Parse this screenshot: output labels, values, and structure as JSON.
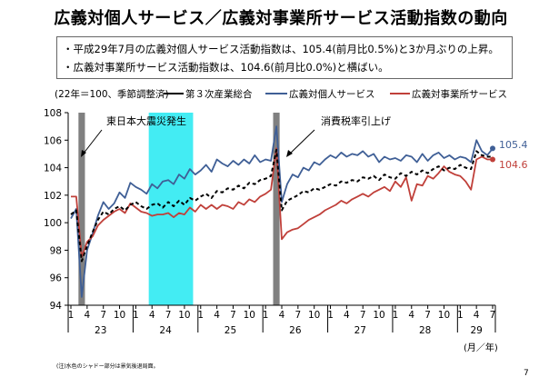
{
  "title": "広義対個人サービス／広義対事業所サービス活動指数の動向",
  "bullets": [
    "・平成29年7月の広義対個人サービス活動指数は、105.4(前月比0.5%)と3か月ぶりの上昇。",
    "・広義対事業所サービス活動指数は、104.6(前月比0.0%)と横ばい。"
  ],
  "footnote": "(注)水色のシャドー部分は景気後退局面。",
  "page_number": "7",
  "colors": {
    "total": "#000000",
    "personal": "#3f5f96",
    "business": "#c0403a",
    "shade_cyan": "#43ecf3",
    "shade_gray": "#808080"
  },
  "chart_data": {
    "type": "line",
    "unit_note": "(22年＝100、季節調整済)",
    "ylim": [
      94,
      108
    ],
    "yticks": [
      94,
      96,
      98,
      100,
      102,
      104,
      106,
      108
    ],
    "x_tick_labels": [
      "1",
      "4",
      "7",
      "10",
      "1",
      "4",
      "7",
      "10",
      "1",
      "4",
      "7",
      "10",
      "1",
      "4",
      "7",
      "10",
      "1",
      "4",
      "7",
      "10",
      "1",
      "4",
      "7",
      "10",
      "1",
      "4",
      "7"
    ],
    "year_labels": [
      "23",
      "24",
      "25",
      "26",
      "27",
      "28",
      "29"
    ],
    "x_axis_unit": "(月／年)",
    "x": [
      "2011-01",
      "2011-02",
      "2011-03",
      "2011-04",
      "2011-05",
      "2011-06",
      "2011-07",
      "2011-08",
      "2011-09",
      "2011-10",
      "2011-11",
      "2011-12",
      "2012-01",
      "2012-02",
      "2012-03",
      "2012-04",
      "2012-05",
      "2012-06",
      "2012-07",
      "2012-08",
      "2012-09",
      "2012-10",
      "2012-11",
      "2012-12",
      "2013-01",
      "2013-02",
      "2013-03",
      "2013-04",
      "2013-05",
      "2013-06",
      "2013-07",
      "2013-08",
      "2013-09",
      "2013-10",
      "2013-11",
      "2013-12",
      "2014-01",
      "2014-02",
      "2014-03",
      "2014-04",
      "2014-05",
      "2014-06",
      "2014-07",
      "2014-08",
      "2014-09",
      "2014-10",
      "2014-11",
      "2014-12",
      "2015-01",
      "2015-02",
      "2015-03",
      "2015-04",
      "2015-05",
      "2015-06",
      "2015-07",
      "2015-08",
      "2015-09",
      "2015-10",
      "2015-11",
      "2015-12",
      "2016-01",
      "2016-02",
      "2016-03",
      "2016-04",
      "2016-05",
      "2016-06",
      "2016-07",
      "2016-08",
      "2016-09",
      "2016-10",
      "2016-11",
      "2016-12",
      "2017-01",
      "2017-02",
      "2017-03",
      "2017-04",
      "2017-05",
      "2017-06",
      "2017-07"
    ],
    "series": [
      {
        "name": "第３次産業総合",
        "values": [
          100.6,
          100.9,
          97.2,
          98.3,
          99.3,
          100.2,
          100.8,
          100.6,
          101.0,
          101.2,
          100.9,
          101.3,
          101.5,
          101.2,
          101.0,
          101.3,
          101.4,
          101.1,
          101.5,
          101.2,
          101.6,
          101.3,
          101.8,
          101.6,
          101.9,
          102.1,
          101.8,
          102.3,
          102.2,
          102.5,
          102.4,
          102.7,
          102.5,
          102.9,
          102.8,
          103.1,
          103.2,
          103.4,
          105.3,
          100.9,
          101.6,
          101.8,
          102.0,
          102.3,
          102.2,
          102.5,
          102.4,
          102.6,
          102.8,
          102.7,
          103.0,
          102.9,
          103.1,
          103.0,
          103.3,
          103.2,
          103.4,
          103.1,
          103.5,
          103.3,
          103.2,
          103.6,
          103.4,
          103.7,
          103.5,
          103.8,
          103.6,
          103.9,
          104.1,
          103.8,
          104.0,
          103.9,
          104.2,
          104.0,
          103.9,
          105.2,
          104.9,
          104.8,
          104.8
        ]
      },
      {
        "name": "広義対個人サービス",
        "values": [
          100.3,
          101.0,
          94.6,
          98.0,
          99.2,
          100.5,
          101.5,
          101.0,
          101.4,
          102.2,
          101.8,
          102.9,
          102.6,
          102.4,
          102.1,
          102.8,
          102.5,
          103.0,
          103.1,
          102.8,
          103.5,
          103.2,
          103.9,
          103.5,
          103.8,
          104.2,
          103.7,
          104.6,
          104.3,
          104.1,
          104.5,
          104.2,
          104.6,
          104.3,
          104.9,
          104.4,
          104.6,
          104.5,
          107.0,
          101.5,
          102.8,
          103.5,
          103.3,
          104.0,
          103.8,
          104.4,
          104.2,
          104.6,
          104.9,
          104.7,
          105.1,
          104.8,
          105.0,
          104.9,
          105.2,
          104.8,
          105.0,
          104.4,
          104.8,
          104.6,
          104.7,
          104.5,
          104.9,
          104.8,
          104.4,
          105.0,
          104.5,
          104.9,
          105.1,
          104.7,
          104.9,
          104.6,
          104.8,
          104.7,
          104.4,
          106.0,
          105.2,
          104.9,
          105.4
        ]
      },
      {
        "name": "広義対事業所サービス",
        "values": [
          101.9,
          101.9,
          97.5,
          98.6,
          99.0,
          99.8,
          100.2,
          100.5,
          100.8,
          101.0,
          100.7,
          101.4,
          101.1,
          100.8,
          100.7,
          100.5,
          100.6,
          100.6,
          100.7,
          100.4,
          100.7,
          100.6,
          101.1,
          100.8,
          101.3,
          101.0,
          101.3,
          101.0,
          101.3,
          101.2,
          101.0,
          101.5,
          101.3,
          101.7,
          101.5,
          101.9,
          102.1,
          102.4,
          105.4,
          98.8,
          99.3,
          99.5,
          99.6,
          99.9,
          100.2,
          100.4,
          100.6,
          100.9,
          101.1,
          101.3,
          101.6,
          101.4,
          101.7,
          101.9,
          102.1,
          101.9,
          102.2,
          102.4,
          102.6,
          102.3,
          103.0,
          102.6,
          103.3,
          101.6,
          102.8,
          102.7,
          103.4,
          103.2,
          103.6,
          104.1,
          103.7,
          103.5,
          103.4,
          103.0,
          102.4,
          104.6,
          104.8,
          104.6,
          104.6
        ]
      }
    ],
    "end_labels": [
      "105.4",
      "104.6"
    ],
    "shaded_periods": [
      {
        "from": "2011-03",
        "to": "2011-03",
        "color": "gray"
      },
      {
        "from": "2012-04",
        "to": "2012-11",
        "color": "cyan"
      },
      {
        "from": "2014-03",
        "to": "2014-03",
        "color": "gray"
      }
    ],
    "annotations": [
      "東日本大震災発生",
      "消費税率引上げ"
    ]
  }
}
